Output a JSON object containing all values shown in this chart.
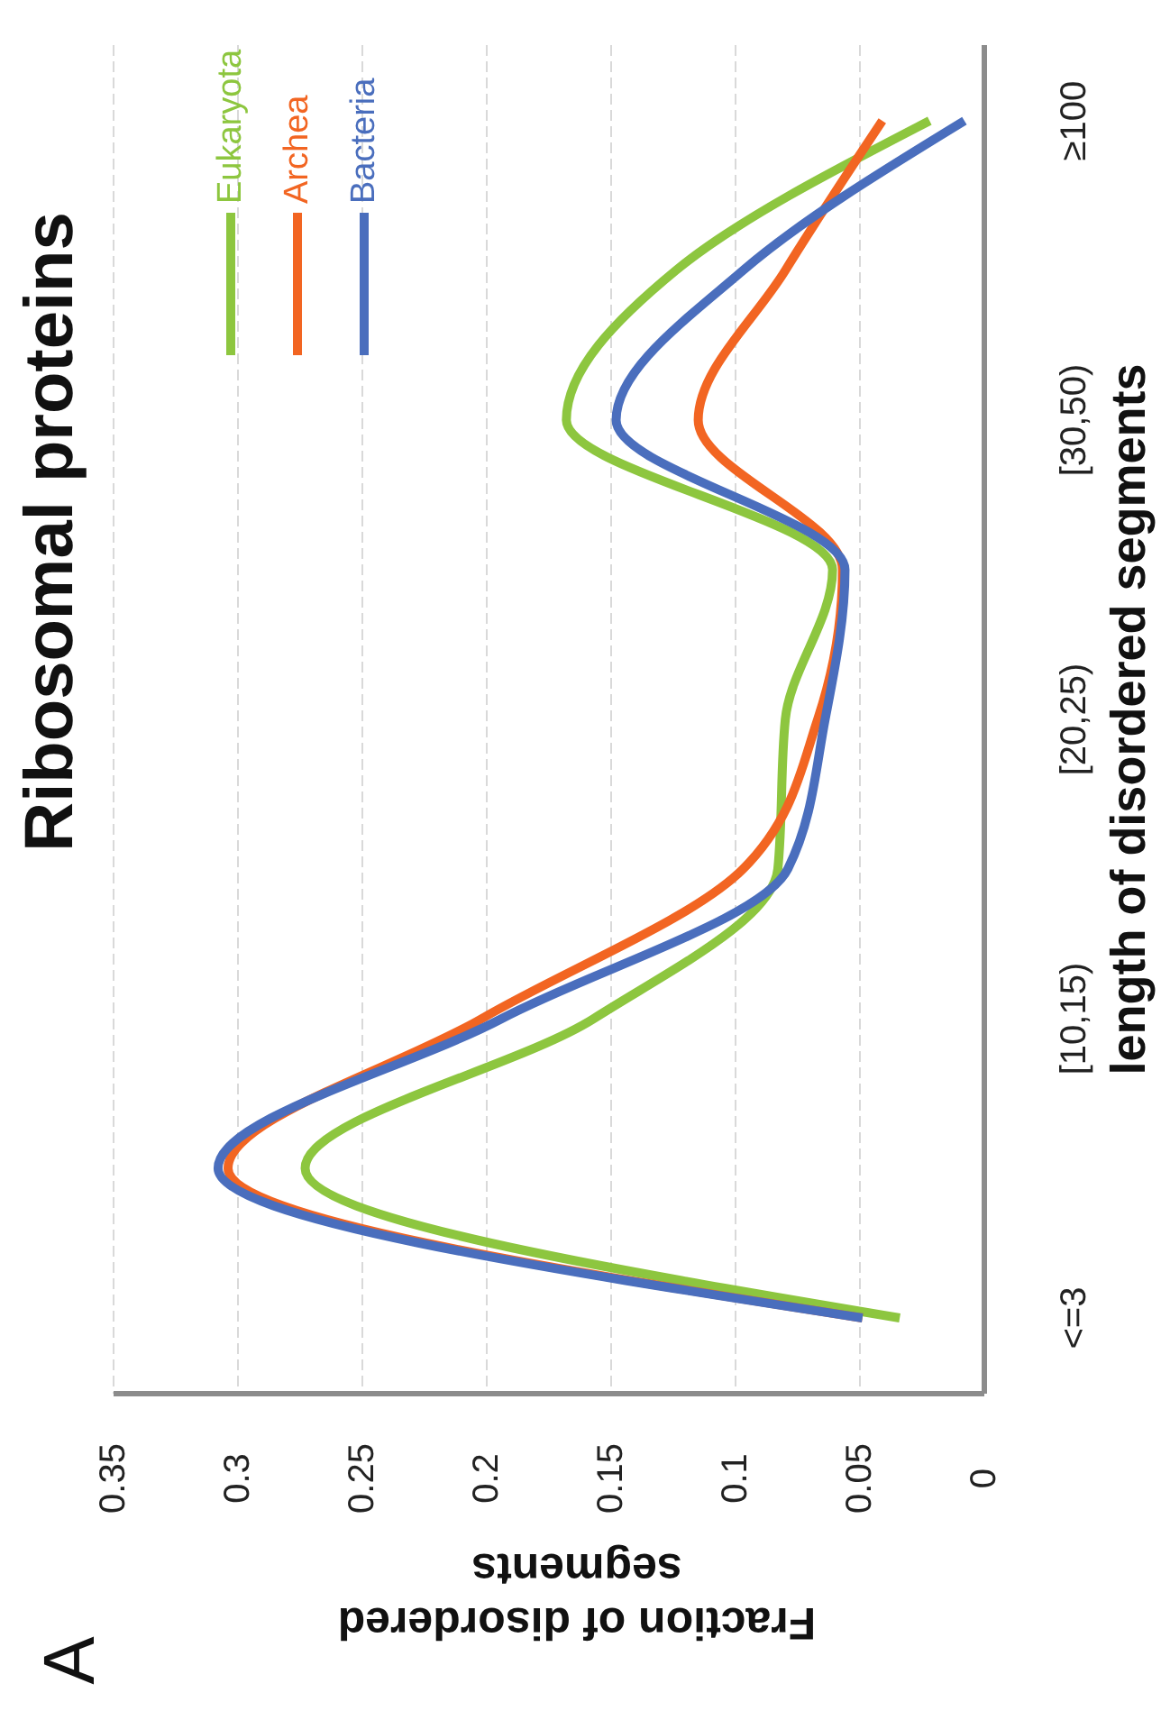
{
  "chart_data": {
    "type": "line",
    "orientation": "horizontal",
    "title": "Ribosomal proteins",
    "xlabel": "Fraction of disordered segments",
    "ylabel": "length of disordered segments",
    "annotations": [
      "A"
    ],
    "categories": [
      "≥100",
      null,
      "[30,50)",
      null,
      "[20,25)",
      null,
      "[10,15)",
      null,
      "<=3"
    ],
    "series": [
      {
        "name": "Eukaryota",
        "color": "#8dc63f",
        "values": [
          0.022,
          0.124,
          0.168,
          0.061,
          0.08,
          0.083,
          0.157,
          0.273,
          0.034
        ]
      },
      {
        "name": "Archea",
        "color": "#f26522",
        "values": [
          0.041,
          0.08,
          0.115,
          0.057,
          0.067,
          0.097,
          0.202,
          0.304,
          0.049
        ]
      },
      {
        "name": "Bacteria",
        "color": "#4a6ebd",
        "values": [
          0.008,
          0.097,
          0.148,
          0.056,
          0.064,
          0.079,
          0.194,
          0.308,
          0.049
        ]
      }
    ],
    "xlim": [
      0.35,
      0
    ],
    "xticks": [
      0,
      0.05,
      0.1,
      0.15,
      0.2,
      0.25,
      0.3,
      0.35
    ],
    "grid": "x",
    "legend": "top left",
    "marker": "none",
    "line_style": "solid"
  }
}
